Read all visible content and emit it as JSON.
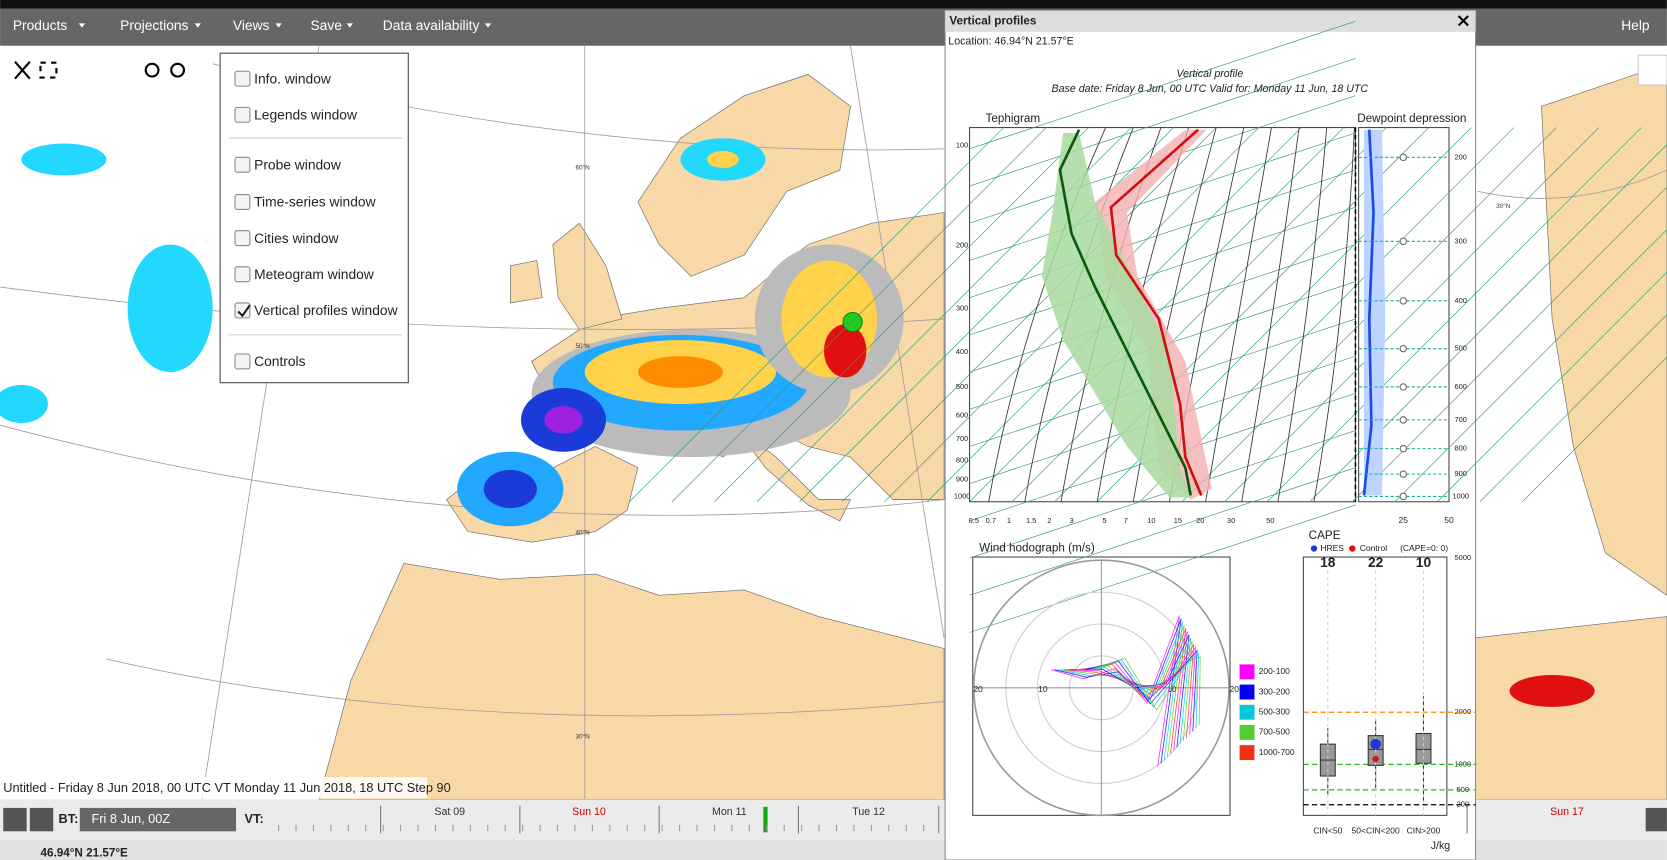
{
  "menu": {
    "items": [
      "Products",
      "Projections",
      "Views",
      "Save",
      "Data availability"
    ],
    "help": "Help"
  },
  "views_menu": {
    "items": [
      {
        "label": "Info. window",
        "checked": false
      },
      {
        "label": "Legends window",
        "checked": false
      },
      {
        "label": "Probe window",
        "checked": false
      },
      {
        "label": "Time-series window",
        "checked": false
      },
      {
        "label": "Cities window",
        "checked": false
      },
      {
        "label": "Meteogram window",
        "checked": false
      },
      {
        "label": "Vertical profiles window",
        "checked": true
      },
      {
        "label": "Controls",
        "checked": false
      }
    ]
  },
  "map": {
    "caption": "Untitled - Friday 8 Jun 2018, 00 UTC VT Monday 11 Jun 2018, 18 UTC Step 90",
    "latitude_labels": [
      "60°N",
      "50°N",
      "40°N",
      "30°N",
      "30°N"
    ]
  },
  "timeline": {
    "bt_label": "BT:",
    "bt_value": "Fri 8 Jun, 00Z",
    "vt_label": "VT:",
    "days": [
      {
        "label": "Sat 09",
        "color": "#333333"
      },
      {
        "label": "Sun 10",
        "color": "#d00000"
      },
      {
        "label": "Mon 11",
        "color": "#333333"
      },
      {
        "label": "Tue 12",
        "color": "#333333"
      },
      {
        "label": "Sun 17",
        "color": "#d00000"
      }
    ]
  },
  "status": {
    "location": "46.94°N 21.57°E"
  },
  "panel": {
    "title": "Vertical profiles",
    "location": "Location: 46.94°N 21.57°E",
    "chart_title": "Vertical profile",
    "chart_subtitle": "Base date: Friday 8 Jun, 00 UTC Valid for: Monday 11 Jun, 18 UTC",
    "tephigram_label": "Tephigram",
    "dewpoint_label": "Dewpoint depression",
    "pressure_levels": [
      100,
      200,
      300,
      400,
      500,
      600,
      700,
      800,
      900,
      1000
    ],
    "right_pressure_levels": [
      200,
      300,
      400,
      500,
      600,
      700,
      800,
      900,
      1000
    ],
    "mixing_ratio_labels": [
      0.5,
      0.7,
      1,
      1.5,
      2,
      3,
      5,
      7,
      10,
      15,
      20,
      30,
      50
    ],
    "depression_ticks": [
      25,
      50
    ]
  },
  "hodograph": {
    "title": "Wind hodograph (m/s)",
    "ring_labels": [
      "20",
      "10",
      "10",
      "20"
    ],
    "legend": [
      {
        "label": "200-100",
        "color": "#ff00ff"
      },
      {
        "label": "300-200",
        "color": "#0000ee"
      },
      {
        "label": "500-300",
        "color": "#00c8d8"
      },
      {
        "label": "700-500",
        "color": "#55cc33"
      },
      {
        "label": "1000-700",
        "color": "#ee3311"
      }
    ]
  },
  "cape": {
    "title": "CAPE",
    "hres": "HRES",
    "control": "Control",
    "note": "(CAPE=0: 0)",
    "counts": [
      18,
      22,
      10
    ],
    "yticks": [
      5000,
      2000,
      1000,
      500,
      200
    ],
    "categories": [
      "CIN<50",
      "50<CIN<200",
      "CIN>200"
    ],
    "unit": "J/kg"
  }
}
